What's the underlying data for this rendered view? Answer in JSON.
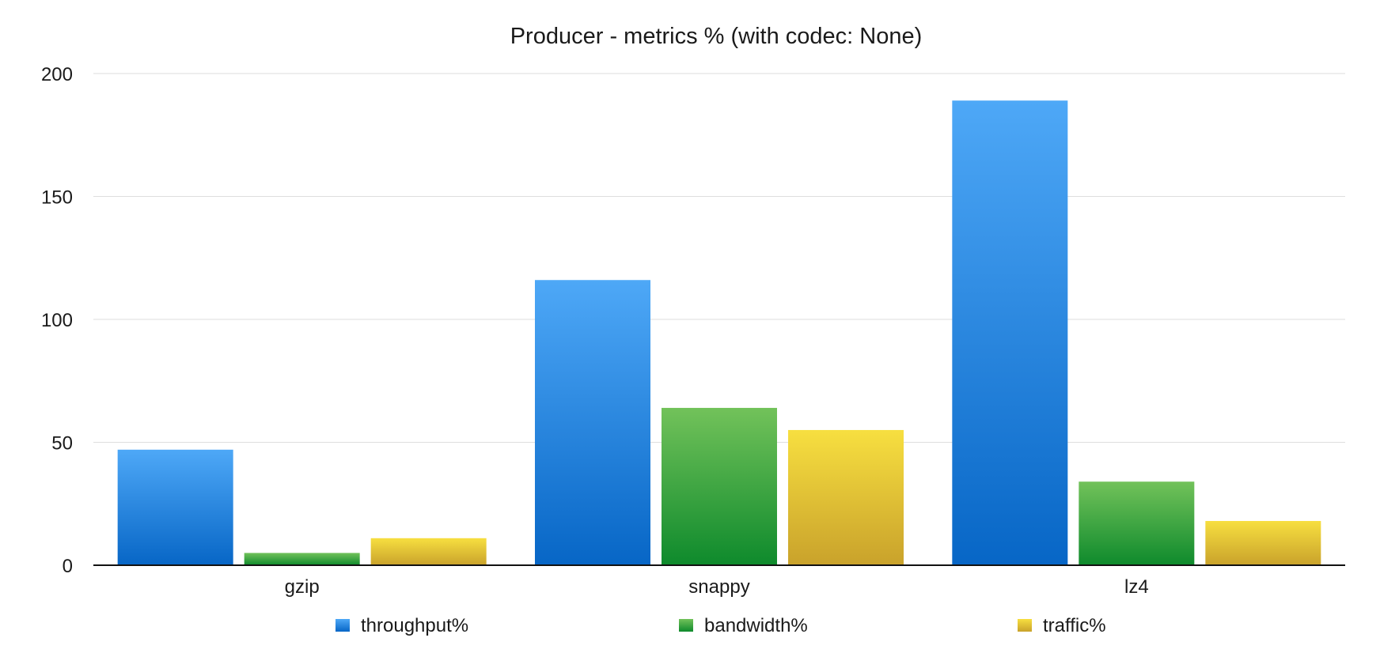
{
  "chart_data": {
    "type": "bar",
    "title": "Producer - metrics % (with codec: None)",
    "xlabel": "",
    "ylabel": "",
    "categories": [
      "gzip",
      "snappy",
      "lz4"
    ],
    "series": [
      {
        "name": "throughput%",
        "values": [
          47,
          116,
          189
        ],
        "color": "#1f7fe0"
      },
      {
        "name": "bandwidth%",
        "values": [
          5,
          64,
          34
        ],
        "color": "#2fa53d"
      },
      {
        "name": "traffic%",
        "values": [
          11,
          55,
          18
        ],
        "color": "#e6c733"
      }
    ],
    "ylim": [
      0,
      200
    ],
    "yticks": [
      0,
      50,
      100,
      150,
      200
    ],
    "grid": true,
    "legend_position": "bottom"
  }
}
